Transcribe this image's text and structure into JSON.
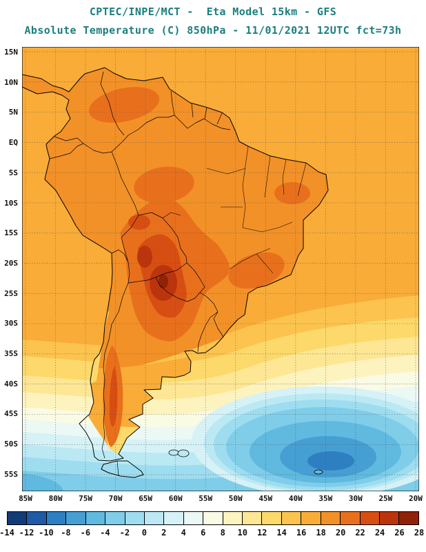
{
  "header": {
    "title": "CPTEC/INPE/MCT -  Eta Model 15km - GFS",
    "subtitle": "Absolute Temperature (C) 850hPa - 11/01/2021 12UTC fct=73h",
    "title_color": "#1b7e7e"
  },
  "map": {
    "lat_labels": [
      "15N",
      "10N",
      "5N",
      "EQ",
      "5S",
      "10S",
      "15S",
      "20S",
      "25S",
      "30S",
      "35S",
      "40S",
      "45S",
      "50S",
      "55S"
    ],
    "lon_labels": [
      "85W",
      "80W",
      "75W",
      "70W",
      "65W",
      "60W",
      "55W",
      "50W",
      "45W",
      "40W",
      "35W",
      "30W",
      "25W",
      "20W"
    ]
  },
  "colorbar": {
    "tick_labels": [
      "-14",
      "-12",
      "-10",
      "-8",
      "-6",
      "-4",
      "-2",
      "0",
      "2",
      "4",
      "6",
      "8",
      "10",
      "12",
      "14",
      "16",
      "18",
      "20",
      "22",
      "24",
      "26",
      "28"
    ],
    "colors": [
      "#123C77",
      "#1E5AA5",
      "#2E7FC2",
      "#459FD3",
      "#60B9DF",
      "#7FCDE9",
      "#9EDDEF",
      "#BBE9F3",
      "#D6F2F6",
      "#EBF8F4",
      "#FAFBE4",
      "#FDF3BE",
      "#FDE795",
      "#FDD96B",
      "#FCC44E",
      "#F9AC38",
      "#F29127",
      "#E8701C",
      "#D74E13",
      "#BB340C",
      "#8F2207"
    ]
  },
  "chart_data": {
    "type": "heatmap",
    "subtype": "filled-contour weather map over geographic basemap",
    "title": "CPTEC/INPE/MCT -  Eta Model 15km - GFS",
    "subtitle": "Absolute Temperature (C) 850hPa - 11/01/2021 12UTC fct=73h",
    "variable": "Absolute Temperature",
    "units": "C",
    "level": "850hPa",
    "model": "Eta Model 15km",
    "boundary_model": "GFS",
    "run_date": "11/01/2021",
    "run_hour": "12UTC",
    "forecast_label": "fct=73h",
    "domain": "South America and adjacent oceans",
    "lon_ticks": [
      "85W",
      "80W",
      "75W",
      "70W",
      "65W",
      "60W",
      "55W",
      "50W",
      "45W",
      "40W",
      "35W",
      "30W",
      "25W",
      "20W"
    ],
    "lat_ticks": [
      "15N",
      "10N",
      "5N",
      "EQ",
      "5S",
      "10S",
      "15S",
      "20S",
      "25S",
      "30S",
      "35S",
      "40S",
      "45S",
      "50S",
      "55S"
    ],
    "graticule_interval_deg": 5,
    "graticule_style": "dotted",
    "contour_interval_c": 2,
    "levels_c": [
      -14,
      -12,
      -10,
      -8,
      -6,
      -4,
      -2,
      0,
      2,
      4,
      6,
      8,
      10,
      12,
      14,
      16,
      18,
      20,
      22,
      24,
      26,
      28
    ],
    "legend_position": "bottom horizontal colorbar",
    "features": [
      {
        "region": "Chaco core: Paraguay / northern Argentina / Bolivian lowlands",
        "approx_temp_c": "22 to 28 (warmest cores)"
      },
      {
        "region": "central Brazil, Bolivia, llanos of Colombia-Venezuela, SE Brazil interior",
        "approx_temp_c": "20 to 24"
      },
      {
        "region": "most of tropical continent and adjacent tropical oceans",
        "approx_temp_c": "16 to 20"
      },
      {
        "region": "warm stripe in lee of Andes along Patagonia (to ~50S)",
        "approx_temp_c": "18 to 24"
      },
      {
        "region": "coastal central Chile (30S-38S)",
        "approx_temp_c": "12 to 16"
      },
      {
        "region": "subtropical South Atlantic and SE Pacific (33S-42S)",
        "approx_temp_c": "4 to 14"
      },
      {
        "region": "near-white transition band",
        "approx_temp_c": "4 to 8"
      },
      {
        "region": "Southern Ocean / far South Atlantic closed cold low (southeast corner)",
        "approx_temp_c": "-10 to -2"
      },
      {
        "region": "Tierra del Fuego and far southern tip",
        "approx_temp_c": "-2 to 4"
      }
    ]
  }
}
